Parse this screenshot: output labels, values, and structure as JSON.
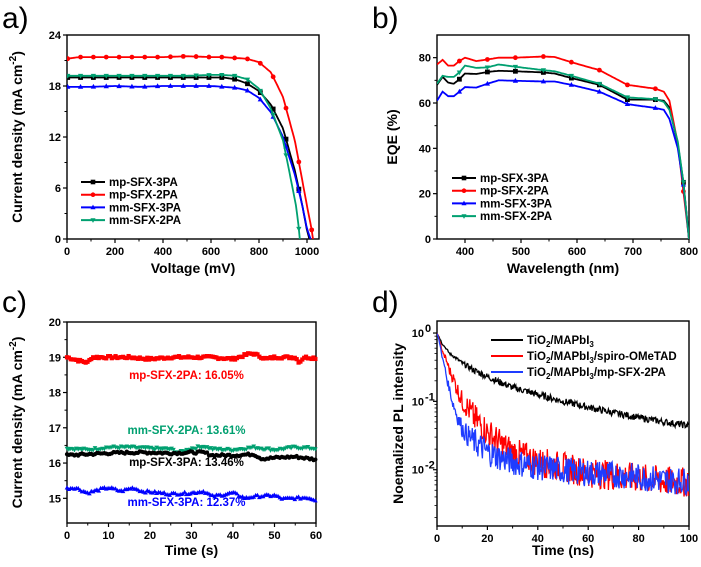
{
  "chart_data": [
    {
      "id": "a",
      "panel_label": "a)",
      "type": "line",
      "title": "",
      "xlabel": "Voltage (mV)",
      "ylabel": "Current density (mA cm",
      "ylabel_sup": "-2",
      "ylabel_end": ")",
      "xlim": [
        0,
        1050
      ],
      "ylim": [
        0,
        24
      ],
      "xticks": [
        0,
        200,
        400,
        600,
        800,
        1000
      ],
      "yticks": [
        0,
        6,
        12,
        18,
        24
      ],
      "grid": false,
      "legend_position": "bottom-left",
      "series": [
        {
          "name": "mp-SFX-3PA",
          "color": "#000000",
          "marker": "square",
          "x": [
            0,
            50,
            100,
            200,
            300,
            400,
            500,
            600,
            650,
            700,
            750,
            800,
            850,
            900,
            950,
            980,
            1000,
            1010
          ],
          "y": [
            19.0,
            19.0,
            19.0,
            19.0,
            19.0,
            19.0,
            19.0,
            19.0,
            19.0,
            18.8,
            18.3,
            17.4,
            15.8,
            13.0,
            8.0,
            4.0,
            1.0,
            0
          ]
        },
        {
          "name": "mp-SFX-2PA",
          "color": "#ff0000",
          "marker": "circle",
          "x": [
            0,
            50,
            100,
            200,
            300,
            400,
            500,
            600,
            650,
            700,
            750,
            800,
            850,
            900,
            950,
            1000,
            1020,
            1025
          ],
          "y": [
            21.2,
            21.4,
            21.4,
            21.4,
            21.4,
            21.4,
            21.5,
            21.4,
            21.4,
            21.3,
            21.2,
            20.8,
            19.6,
            16.7,
            11.5,
            3.9,
            1.0,
            0
          ]
        },
        {
          "name": "mm-SFX-3PA",
          "color": "#0000ff",
          "marker": "triangle-up",
          "x": [
            0,
            50,
            100,
            200,
            300,
            400,
            500,
            600,
            650,
            700,
            750,
            800,
            850,
            900,
            950,
            980,
            1000,
            1015
          ],
          "y": [
            17.9,
            17.9,
            17.9,
            18.0,
            17.9,
            18.0,
            18.0,
            18.0,
            17.9,
            17.8,
            17.5,
            16.6,
            14.9,
            12.0,
            7.5,
            4.0,
            1.2,
            0
          ]
        },
        {
          "name": "mm-SFX-2PA",
          "color": "#00a070",
          "marker": "triangle-down",
          "x": [
            0,
            50,
            100,
            200,
            300,
            400,
            500,
            600,
            650,
            700,
            750,
            800,
            850,
            900,
            940,
            955,
            965,
            970
          ],
          "y": [
            19.2,
            19.2,
            19.2,
            19.2,
            19.2,
            19.2,
            19.2,
            19.3,
            19.3,
            19.2,
            18.8,
            17.7,
            15.3,
            11.6,
            6.0,
            3.8,
            1.5,
            0
          ]
        }
      ]
    },
    {
      "id": "b",
      "panel_label": "b)",
      "type": "line",
      "title": "",
      "xlabel": "Wavelength (nm)",
      "ylabel": "EQE (%)",
      "xlim": [
        350,
        800
      ],
      "ylim": [
        0,
        90
      ],
      "xticks": [
        400,
        500,
        600,
        700,
        800
      ],
      "yticks": [
        0,
        20,
        40,
        60,
        80
      ],
      "grid": false,
      "legend_position": "bottom-left",
      "series": [
        {
          "name": "mp-SFX-3PA",
          "color": "#000000",
          "marker": "square",
          "x": [
            350,
            360,
            370,
            380,
            390,
            400,
            420,
            440,
            460,
            490,
            540,
            560,
            590,
            640,
            690,
            740,
            755,
            765,
            780,
            790,
            800
          ],
          "y": [
            68,
            71.5,
            69,
            68.5,
            70.5,
            73,
            72.8,
            73.7,
            74.2,
            74,
            73.5,
            73,
            71,
            68,
            61.5,
            61.5,
            61,
            58,
            42,
            25,
            0
          ]
        },
        {
          "name": "mp-SFX-2PA",
          "color": "#ff0000",
          "marker": "circle",
          "x": [
            350,
            360,
            370,
            380,
            390,
            400,
            420,
            440,
            460,
            490,
            540,
            560,
            590,
            640,
            690,
            740,
            755,
            765,
            780,
            790,
            800
          ],
          "y": [
            77,
            79,
            76.5,
            76.5,
            78.5,
            80,
            78.5,
            79.2,
            80,
            80,
            80.5,
            80.3,
            78,
            74.5,
            68,
            66.3,
            65,
            61,
            42,
            21,
            0
          ]
        },
        {
          "name": "mm-SFX-3PA",
          "color": "#0000ff",
          "marker": "triangle-up",
          "x": [
            350,
            360,
            370,
            380,
            390,
            400,
            420,
            440,
            460,
            490,
            540,
            560,
            590,
            640,
            690,
            740,
            755,
            765,
            780,
            790,
            800
          ],
          "y": [
            61,
            65,
            63,
            63,
            65,
            67,
            66.8,
            68.5,
            70,
            69.8,
            69.5,
            69.5,
            68,
            65,
            59.5,
            57.8,
            57,
            53,
            40,
            24,
            0
          ]
        },
        {
          "name": "mm-SFX-2PA",
          "color": "#00a070",
          "marker": "triangle-down",
          "x": [
            350,
            360,
            370,
            380,
            390,
            400,
            420,
            440,
            460,
            490,
            540,
            560,
            590,
            640,
            690,
            740,
            755,
            765,
            780,
            790,
            800
          ],
          "y": [
            68.5,
            72,
            71.5,
            71.5,
            73.5,
            76.5,
            75.5,
            75.7,
            77,
            76,
            74.5,
            74,
            72,
            68.5,
            62.5,
            61.7,
            60.5,
            57,
            43,
            25,
            0
          ]
        }
      ]
    },
    {
      "id": "c",
      "panel_label": "c)",
      "type": "scatter",
      "title": "",
      "xlabel": "Time (s)",
      "ylabel": "Current density (mA cm",
      "ylabel_sup": "-2",
      "ylabel_end": ")",
      "xlim": [
        0,
        60
      ],
      "ylim": [
        14.3,
        20
      ],
      "xticks": [
        0,
        10,
        20,
        30,
        40,
        50,
        60
      ],
      "yticks": [
        15,
        16,
        17,
        18,
        19,
        20
      ],
      "grid": false,
      "series": [
        {
          "name": "mp-SFX-2PA",
          "annotation": "mp-SFX-2PA: 16.05%",
          "color": "#ff0000",
          "marker": "square",
          "x": [
            0,
            3,
            5,
            6,
            10,
            15,
            20,
            25,
            30,
            35,
            40,
            44,
            45,
            48,
            50,
            55,
            56,
            57,
            60
          ],
          "y": [
            19.0,
            18.9,
            18.85,
            19.0,
            19.0,
            19.0,
            18.95,
            19.0,
            19.0,
            19.0,
            18.95,
            19.1,
            19.1,
            18.95,
            19.0,
            19.0,
            18.85,
            19.0,
            18.98
          ]
        },
        {
          "name": "mm-SFX-2PA",
          "annotation": "mm-SFX-2PA: 13.61%",
          "color": "#00a070",
          "marker": "triangle-down",
          "x": [
            0,
            5,
            10,
            15,
            20,
            25,
            27,
            30,
            33,
            35,
            40,
            45,
            50,
            55,
            60
          ],
          "y": [
            16.42,
            16.38,
            16.45,
            16.45,
            16.42,
            16.4,
            16.3,
            16.42,
            16.48,
            16.4,
            16.38,
            16.45,
            16.38,
            16.45,
            16.42
          ]
        },
        {
          "name": "mp-SFX-3PA",
          "annotation": "mp-SFX-3PA: 13.46%",
          "color": "#000000",
          "marker": "circle",
          "x": [
            0,
            5,
            10,
            15,
            20,
            25,
            30,
            33,
            35,
            40,
            45,
            47,
            50,
            55,
            60
          ],
          "y": [
            16.22,
            16.25,
            16.28,
            16.3,
            16.3,
            16.28,
            16.3,
            16.3,
            16.22,
            16.22,
            16.25,
            16.12,
            16.15,
            16.18,
            16.1
          ]
        },
        {
          "name": "mm-SFX-3PA",
          "annotation": "mm-SFX-3PA: 12.37%",
          "color": "#0000ff",
          "marker": "triangle-up",
          "x": [
            0,
            2,
            5,
            8,
            10,
            13,
            16,
            18,
            20,
            25,
            30,
            33,
            35,
            40,
            43,
            45,
            50,
            52,
            55,
            58,
            60
          ],
          "y": [
            15.28,
            15.3,
            15.15,
            15.25,
            15.3,
            15.2,
            15.3,
            15.2,
            15.18,
            15.12,
            15.15,
            15.2,
            15.05,
            15.15,
            15.0,
            15.05,
            15.08,
            14.98,
            15.0,
            15.02,
            14.95
          ]
        }
      ]
    },
    {
      "id": "d",
      "panel_label": "d)",
      "type": "line",
      "title": "",
      "xlabel": "Time (ns)",
      "ylabel": "Noemalized PL intensity",
      "xlim": [
        0,
        100
      ],
      "ylim": [
        0.0015,
        1.5
      ],
      "yscale": "log",
      "xticks": [
        0,
        20,
        40,
        60,
        80,
        100
      ],
      "yticks": [
        1,
        0.1,
        0.01
      ],
      "ytick_labels": [
        {
          "base": "10",
          "exp": "0"
        },
        {
          "base": "10",
          "exp": "-1"
        },
        {
          "base": "10",
          "exp": "-2"
        }
      ],
      "grid": false,
      "legend_position": "top-right",
      "series": [
        {
          "name": "TiO2/MAPbI3",
          "legend_parts": [
            "TiO",
            "2",
            "/MAPbI",
            "3",
            ""
          ],
          "color": "#000000",
          "x": [
            0,
            2,
            5,
            10,
            15,
            20,
            25,
            30,
            40,
            50,
            60,
            70,
            80,
            90,
            100
          ],
          "y": [
            1.0,
            0.7,
            0.5,
            0.36,
            0.28,
            0.23,
            0.19,
            0.16,
            0.125,
            0.1,
            0.082,
            0.068,
            0.058,
            0.05,
            0.044
          ]
        },
        {
          "name": "TiO2/MAPbI3/spiro-OMeTAD",
          "legend_parts": [
            "TiO",
            "2",
            "/MAPbI",
            "3",
            "/spiro-OMeTAD"
          ],
          "color": "#ff0000",
          "x": [
            0,
            2,
            5,
            8,
            10,
            15,
            20,
            25,
            30,
            40,
            50,
            60,
            70,
            80,
            90,
            100
          ],
          "y": [
            1.0,
            0.55,
            0.28,
            0.15,
            0.1,
            0.055,
            0.035,
            0.024,
            0.018,
            0.013,
            0.011,
            0.009,
            0.0082,
            0.0075,
            0.0068,
            0.0065
          ]
        },
        {
          "name": "TiO2/MAPbI3/mp-SFX-2PA",
          "legend_parts": [
            "TiO",
            "2",
            "/MAPbI",
            "3",
            "/mp-SFX-2PA"
          ],
          "color": "#1e3cff",
          "x": [
            0,
            2,
            4,
            6,
            8,
            10,
            12,
            15,
            20,
            25,
            30,
            40,
            50,
            60,
            70,
            80,
            90,
            100
          ],
          "y": [
            1.0,
            0.45,
            0.2,
            0.1,
            0.06,
            0.04,
            0.032,
            0.025,
            0.018,
            0.015,
            0.013,
            0.011,
            0.0098,
            0.009,
            0.0085,
            0.0078,
            0.007,
            0.0068
          ]
        }
      ]
    }
  ]
}
